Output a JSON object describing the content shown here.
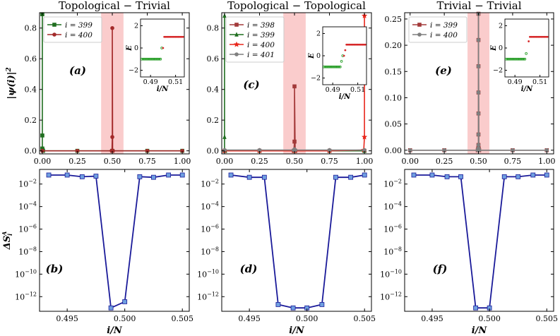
{
  "chart_data": [
    {
      "id": "a",
      "type": "line",
      "title": "Topological − Trivial",
      "panel_label": "(a)",
      "ylabel": "|ψ(i)|²",
      "xlim": [
        -0.02,
        1.05
      ],
      "ylim": [
        -0.02,
        0.9
      ],
      "xticks": [
        0,
        0.25,
        0.5,
        0.75,
        1
      ],
      "xticklabels": [
        "0.00",
        "0.25",
        "0.50",
        "0.75",
        "1.00"
      ],
      "yticks": [
        0,
        0.2,
        0.4,
        0.6,
        0.8
      ],
      "yticklabels": [
        "0.0",
        "0.2",
        "0.4",
        "0.6",
        "0.8"
      ],
      "highlight": [
        0.42,
        0.58
      ],
      "legend_position": "upper-left",
      "series": [
        {
          "name": "i = 399",
          "color": "#1f6e1f",
          "marker": "square",
          "x": [
            0.0,
            0.0,
            0.0,
            0.0025,
            0.005,
            0.25,
            0.5,
            0.75,
            1.0
          ],
          "y": [
            0.89,
            0.1,
            0.015,
            0.005,
            0.0,
            0.0,
            0.0,
            0.0,
            0.0
          ]
        },
        {
          "name": "i = 400",
          "color": "#a32a2a",
          "marker": "circle",
          "x": [
            0.0,
            0.25,
            0.495,
            0.4975,
            0.5,
            0.5,
            0.5025,
            0.505,
            0.75,
            1.0
          ],
          "y": [
            0.0,
            0.0,
            0.0,
            0.0,
            0.09,
            0.8,
            0.0,
            0.0,
            0.0,
            0.0
          ]
        }
      ],
      "inset": {
        "xlabel": "i/N",
        "ylabel": "E",
        "xlim": [
          0.482,
          0.517
        ],
        "ylim": [
          -2.6,
          2.6
        ],
        "xticks": [
          0.49,
          0.51
        ],
        "xticklabels": [
          "0.49",
          "0.51"
        ],
        "yticks": [
          -2,
          0,
          2
        ],
        "yticklabels": [
          "−2",
          "0",
          "2"
        ],
        "series": [
          {
            "color": "#2ca02c",
            "marker": "open-circle",
            "x": [
              0.483,
              0.484,
              0.485,
              0.486,
              0.487,
              0.488,
              0.489,
              0.49,
              0.491,
              0.492,
              0.493,
              0.494,
              0.495,
              0.496,
              0.497,
              0.498,
              0.499
            ],
            "y": [
              -1.0,
              -1.0,
              -1.0,
              -1.0,
              -1.0,
              -1.0,
              -1.0,
              -1.0,
              -1.0,
              -1.0,
              -1.0,
              -1.0,
              -1.0,
              -1.0,
              -1.0,
              -1.0,
              0.0
            ]
          },
          {
            "color": "#d62728",
            "marker": "filled-circle",
            "x": [
              0.5,
              0.501,
              0.502,
              0.503,
              0.504,
              0.505,
              0.506,
              0.507,
              0.508,
              0.509,
              0.51,
              0.511,
              0.512,
              0.513,
              0.514,
              0.515,
              0.516
            ],
            "y": [
              0.0,
              1.0,
              1.0,
              1.0,
              1.0,
              1.0,
              1.0,
              1.0,
              1.0,
              1.0,
              1.0,
              1.0,
              1.0,
              1.0,
              1.0,
              1.0,
              1.0
            ]
          }
        ]
      }
    },
    {
      "id": "c",
      "type": "line",
      "title": "Topological − Topological",
      "panel_label": "(c)",
      "ylabel": "",
      "xlim": [
        -0.02,
        1.05
      ],
      "ylim": [
        -0.02,
        0.9
      ],
      "xticks": [
        0,
        0.25,
        0.5,
        0.75,
        1
      ],
      "xticklabels": [
        "0.00",
        "0.25",
        "0.50",
        "0.75",
        "1.00"
      ],
      "yticks": [
        0,
        0.2,
        0.4,
        0.6,
        0.8
      ],
      "yticklabels": [
        "0.0",
        "0.2",
        "0.4",
        "0.6",
        "0.8"
      ],
      "highlight": [
        0.42,
        0.58
      ],
      "legend_position": "upper-left",
      "series": [
        {
          "name": "i = 398",
          "color": "#a33a3a",
          "marker": "square",
          "x": [
            0.0,
            0.25,
            0.495,
            0.5,
            0.5,
            0.505,
            0.75,
            1.0
          ],
          "y": [
            0.0,
            0.0,
            0.0,
            0.06,
            0.42,
            0.0,
            0.0,
            0.0
          ]
        },
        {
          "name": "i = 399",
          "color": "#1f6e1f",
          "marker": "triangle",
          "x": [
            0.0,
            0.0,
            0.0,
            0.005,
            0.25,
            0.5,
            0.75,
            1.0
          ],
          "y": [
            0.88,
            0.09,
            0.005,
            0.0,
            0.0,
            0.0,
            0.0,
            0.0
          ]
        },
        {
          "name": "i = 400",
          "color": "#e8261b",
          "marker": "star",
          "x": [
            0.0,
            0.25,
            0.5,
            0.75,
            0.995,
            1.0,
            1.0
          ],
          "y": [
            0.0,
            0.0,
            0.0,
            0.0,
            0.005,
            0.09,
            0.88
          ]
        },
        {
          "name": "i = 401",
          "color": "#7f7f7f",
          "marker": "circle",
          "x": [
            0.0,
            0.25,
            0.495,
            0.5,
            0.505,
            0.75,
            1.0
          ],
          "y": [
            0.005,
            0.005,
            0.005,
            0.01,
            0.005,
            0.005,
            0.005
          ]
        }
      ],
      "inset": {
        "xlabel": "i/N",
        "ylabel": "E",
        "xlim": [
          0.482,
          0.517
        ],
        "ylim": [
          -2.6,
          2.6
        ],
        "xticks": [
          0.49,
          0.51
        ],
        "xticklabels": [
          "0.49",
          "0.51"
        ],
        "yticks": [
          -2,
          0,
          2
        ],
        "yticklabels": [
          "−2",
          "0",
          "2"
        ],
        "series": [
          {
            "color": "#2ca02c",
            "marker": "open-circle",
            "x": [
              0.483,
              0.484,
              0.485,
              0.486,
              0.487,
              0.488,
              0.489,
              0.49,
              0.491,
              0.492,
              0.493,
              0.494,
              0.495,
              0.496,
              0.497,
              0.498
            ],
            "y": [
              -1.0,
              -1.0,
              -1.0,
              -1.0,
              -1.0,
              -1.0,
              -1.0,
              -1.0,
              -1.0,
              -1.0,
              -1.0,
              -1.0,
              -1.0,
              -1.0,
              -0.5,
              0.0
            ]
          },
          {
            "color": "#d62728",
            "marker": "filled-circle",
            "x": [
              0.499,
              0.5,
              0.501,
              0.502,
              0.503,
              0.504,
              0.505,
              0.506,
              0.507,
              0.508,
              0.509,
              0.51,
              0.511,
              0.512,
              0.513,
              0.514,
              0.515,
              0.516
            ],
            "y": [
              0.0,
              0.5,
              1.0,
              1.0,
              1.0,
              1.0,
              1.0,
              1.0,
              1.0,
              1.0,
              1.0,
              1.0,
              1.0,
              1.0,
              1.0,
              1.0,
              1.0,
              1.0
            ]
          }
        ]
      }
    },
    {
      "id": "e",
      "type": "line",
      "title": "Trivial − Trivial",
      "panel_label": "(e)",
      "ylabel": "",
      "xlim": [
        -0.04,
        1.05
      ],
      "ylim": [
        -0.007,
        0.262
      ],
      "xticks": [
        0,
        0.25,
        0.5,
        0.75,
        1
      ],
      "xticklabels": [
        "0.00",
        "0.25",
        "0.50",
        "0.75",
        "1.00"
      ],
      "yticks": [
        0,
        0.05,
        0.1,
        0.15,
        0.2,
        0.25
      ],
      "yticklabels": [
        "0.00",
        "0.05",
        "0.10",
        "0.15",
        "0.20",
        "0.25"
      ],
      "highlight": [
        0.42,
        0.58
      ],
      "legend_position": "upper-left",
      "series": [
        {
          "name": "i = 399",
          "color": "#a33a3a",
          "marker": "square",
          "x": [
            0.0,
            0.25,
            0.495,
            0.4975,
            0.5,
            0.5,
            0.5,
            0.5,
            0.5,
            0.5,
            0.5,
            0.5025,
            0.505,
            0.75,
            1.0
          ],
          "y": [
            0.0,
            0.0,
            0.0,
            0.003,
            0.01,
            0.03,
            0.07,
            0.11,
            0.16,
            0.21,
            0.26,
            0.003,
            0.0,
            0.0,
            0.0
          ]
        },
        {
          "name": "i = 400",
          "color": "#7f7f7f",
          "marker": "circle",
          "x": [
            0.0,
            0.25,
            0.495,
            0.4975,
            0.5,
            0.5,
            0.5,
            0.5,
            0.5,
            0.5,
            0.5,
            0.5025,
            0.505,
            0.75,
            1.0
          ],
          "y": [
            0.0,
            0.0,
            0.0,
            0.003,
            0.01,
            0.03,
            0.07,
            0.11,
            0.16,
            0.21,
            0.26,
            0.003,
            0.0,
            0.0,
            0.0
          ]
        }
      ],
      "inset": {
        "xlabel": "i/N",
        "ylabel": "E",
        "xlim": [
          0.482,
          0.517
        ],
        "ylim": [
          -2.6,
          2.6
        ],
        "xticks": [
          0.49,
          0.51
        ],
        "xticklabels": [
          "0.49",
          "0.51"
        ],
        "yticks": [
          -2,
          0,
          2
        ],
        "yticklabels": [
          "−2",
          "0",
          "2"
        ],
        "series": [
          {
            "color": "#2ca02c",
            "marker": "open-circle",
            "x": [
              0.483,
              0.484,
              0.485,
              0.486,
              0.487,
              0.488,
              0.489,
              0.49,
              0.491,
              0.492,
              0.493,
              0.494,
              0.495,
              0.496,
              0.497,
              0.498,
              0.499
            ],
            "y": [
              -1.0,
              -1.0,
              -1.0,
              -1.0,
              -1.0,
              -1.0,
              -1.0,
              -1.0,
              -1.0,
              -1.0,
              -1.0,
              -1.0,
              -1.0,
              -1.0,
              -1.0,
              -1.0,
              -0.5
            ]
          },
          {
            "color": "#d62728",
            "marker": "filled-circle",
            "x": [
              0.501,
              0.502,
              0.503,
              0.504,
              0.505,
              0.506,
              0.507,
              0.508,
              0.509,
              0.51,
              0.511,
              0.512,
              0.513,
              0.514,
              0.515,
              0.516
            ],
            "y": [
              0.6,
              1.0,
              1.0,
              1.0,
              1.0,
              1.0,
              1.0,
              1.0,
              1.0,
              1.0,
              1.0,
              1.0,
              1.0,
              1.0,
              1.0,
              1.0
            ]
          }
        ]
      }
    },
    {
      "id": "b",
      "type": "line",
      "panel_label": "(b)",
      "xlabel": "i/N",
      "ylabel": "ΔS_i^A",
      "yscale": "log",
      "xlim": [
        0.4926,
        0.5056
      ],
      "ylim_log10": [
        -13.3,
        -0.7
      ],
      "xticks": [
        0.495,
        0.5,
        0.505
      ],
      "xticklabels": [
        "0.495",
        "0.500",
        "0.505"
      ],
      "yticks_log10": [
        -12,
        -10,
        -8,
        -6,
        -4,
        -2
      ],
      "yticklabels": [
        "10^-12",
        "10^-10",
        "10^-8",
        "10^-6",
        "10^-4",
        "10^-2"
      ],
      "color": "#1a1a99",
      "marker_color": "#6f9fe0",
      "x": [
        0.4934,
        0.495,
        0.4963,
        0.4975,
        0.4988,
        0.5,
        0.5013,
        0.5025,
        0.5038,
        0.505
      ],
      "y_log10": [
        -1.2,
        -1.2,
        -1.35,
        -1.3,
        -13.0,
        -12.45,
        -1.35,
        -1.4,
        -1.2,
        -1.2
      ]
    },
    {
      "id": "d",
      "type": "line",
      "panel_label": "(d)",
      "xlabel": "i/N",
      "ylabel": "",
      "yscale": "log",
      "xlim": [
        0.4926,
        0.5056
      ],
      "ylim_log10": [
        -13.3,
        -0.7
      ],
      "xticks": [
        0.495,
        0.5,
        0.505
      ],
      "xticklabels": [
        "0.495",
        "0.500",
        "0.505"
      ],
      "yticks_log10": [
        -12,
        -10,
        -8,
        -6,
        -4,
        -2
      ],
      "yticklabels": [
        "10^-12",
        "10^-10",
        "10^-8",
        "10^-6",
        "10^-4",
        "10^-2"
      ],
      "color": "#1a1a99",
      "marker_color": "#6f9fe0",
      "x": [
        0.4934,
        0.495,
        0.4963,
        0.4975,
        0.4988,
        0.5,
        0.5013,
        0.5025,
        0.5038,
        0.505
      ],
      "y_log10": [
        -1.2,
        -1.4,
        -1.4,
        -12.7,
        -13.0,
        -13.0,
        -12.7,
        -1.4,
        -1.4,
        -1.2
      ]
    },
    {
      "id": "f",
      "type": "line",
      "panel_label": "(f)",
      "xlabel": "i/N",
      "ylabel": "",
      "yscale": "log",
      "xlim": [
        0.4926,
        0.5056
      ],
      "ylim_log10": [
        -13.3,
        -0.7
      ],
      "xticks": [
        0.495,
        0.5,
        0.505
      ],
      "xticklabels": [
        "0.495",
        "0.500",
        "0.505"
      ],
      "yticks_log10": [
        -12,
        -10,
        -8,
        -6,
        -4,
        -2
      ],
      "yticklabels": [
        "10^-12",
        "10^-10",
        "10^-8",
        "10^-6",
        "10^-4",
        "10^-2"
      ],
      "color": "#1a1a99",
      "marker_color": "#6f9fe0",
      "x": [
        0.4934,
        0.495,
        0.4963,
        0.4975,
        0.4988,
        0.5,
        0.5013,
        0.5025,
        0.5038,
        0.505
      ],
      "y_log10": [
        -1.2,
        -1.2,
        -1.35,
        -1.35,
        -13.0,
        -13.0,
        -1.35,
        -1.35,
        -1.2,
        -1.2
      ]
    }
  ]
}
